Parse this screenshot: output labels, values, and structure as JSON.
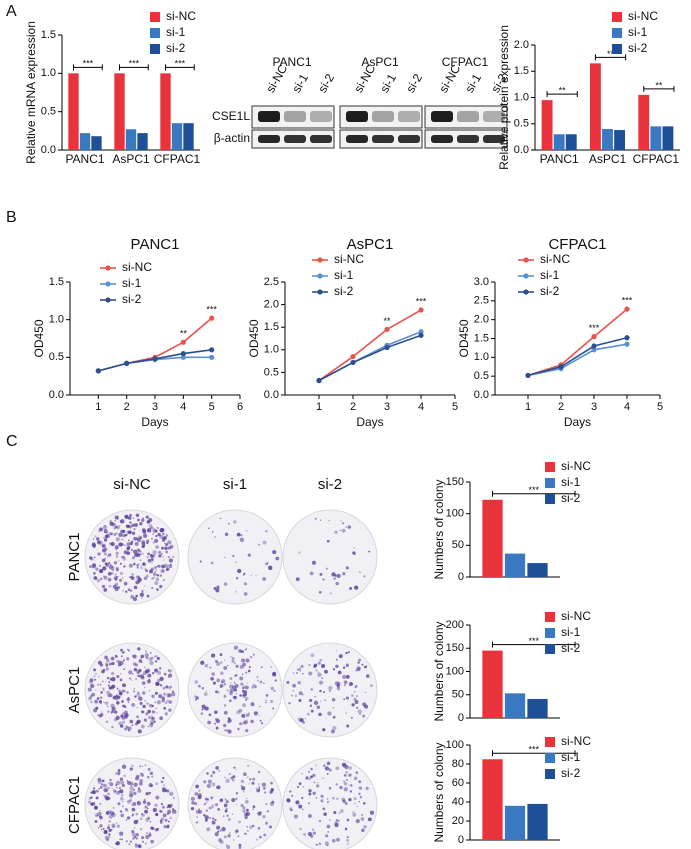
{
  "panel_labels": [
    "A",
    "B",
    "C"
  ],
  "blot": {
    "cell_lines": [
      "PANC1",
      "AsPC1",
      "CFPAC1"
    ],
    "lanes": [
      "si-NC",
      "si-1",
      "si-2"
    ],
    "proteins": [
      "CSE1L",
      "β-actin"
    ]
  },
  "colony": {
    "columns": [
      "si-NC",
      "si-1",
      "si-2"
    ],
    "rows": [
      "PANC1",
      "AsPC1",
      "CFPAC1"
    ]
  },
  "chart_data": [
    {
      "type": "bar",
      "ylabel": "Relative mRNA expression",
      "categories": [
        "PANC1",
        "AsPC1",
        "CFPAC1"
      ],
      "series": [
        {
          "name": "si-NC",
          "color": "#e8323c",
          "values": [
            1.0,
            1.0,
            1.0
          ]
        },
        {
          "name": "si-1",
          "color": "#3a78c2",
          "values": [
            0.22,
            0.27,
            0.35
          ]
        },
        {
          "name": "si-2",
          "color": "#1f4f96",
          "values": [
            0.18,
            0.22,
            0.35
          ]
        }
      ],
      "annotations": [
        "***",
        "***",
        "***"
      ],
      "ylim": [
        0,
        1.5
      ],
      "yticks": [
        {
          "value": 0,
          "label": "0.0"
        },
        {
          "value": 0.5,
          "label": "0.5"
        },
        {
          "value": 1,
          "label": "1.0"
        },
        {
          "value": 1.5,
          "label": "1.5"
        }
      ]
    },
    {
      "type": "bar",
      "ylabel": "Relative protein expression",
      "categories": [
        "PANC1",
        "AsPC1",
        "CFPAC1"
      ],
      "series": [
        {
          "name": "si-NC",
          "color": "#e8323c",
          "values": [
            0.95,
            1.65,
            1.05
          ]
        },
        {
          "name": "si-1",
          "color": "#3a78c2",
          "values": [
            0.3,
            0.4,
            0.45
          ]
        },
        {
          "name": "si-2",
          "color": "#1f4f96",
          "values": [
            0.3,
            0.38,
            0.45
          ]
        }
      ],
      "annotations": [
        "**",
        "**",
        "**"
      ],
      "ylim": [
        0,
        2
      ],
      "yticks": [
        {
          "value": 0,
          "label": "0.0"
        },
        {
          "value": 0.5,
          "label": "0.5"
        },
        {
          "value": 1,
          "label": "1.0"
        },
        {
          "value": 1.5,
          "label": "1.5"
        },
        {
          "value": 2,
          "label": "2.0"
        }
      ]
    },
    {
      "type": "line",
      "title": "PANC1",
      "xlabel": "Days",
      "ylabel": "OD450",
      "x": [
        1,
        2,
        3,
        4,
        5
      ],
      "series": [
        {
          "name": "si-NC",
          "color": "#e8534a",
          "values": [
            0.32,
            0.42,
            0.5,
            0.7,
            1.02
          ]
        },
        {
          "name": "si-1",
          "color": "#5b8fd6",
          "values": [
            0.32,
            0.42,
            0.47,
            0.5,
            0.5
          ]
        },
        {
          "name": "si-2",
          "color": "#2c4f8f",
          "values": [
            0.32,
            0.42,
            0.48,
            0.55,
            0.6
          ]
        }
      ],
      "annotations": [
        "**",
        "***"
      ],
      "annotation_x": [
        4,
        5
      ],
      "xlim": [
        0,
        6
      ],
      "xticks": [
        1,
        2,
        3,
        4,
        5,
        6
      ],
      "ylim": [
        0,
        1.5
      ],
      "yticks": [
        {
          "value": 0,
          "label": "0.0"
        },
        {
          "value": 0.5,
          "label": "0.5"
        },
        {
          "value": 1,
          "label": "1.0"
        },
        {
          "value": 1.5,
          "label": "1.5"
        }
      ]
    },
    {
      "type": "line",
      "title": "AsPC1",
      "xlabel": "Days",
      "ylabel": "OD450",
      "x": [
        1,
        2,
        3,
        4
      ],
      "series": [
        {
          "name": "si-NC",
          "color": "#e8534a",
          "values": [
            0.32,
            0.85,
            1.45,
            1.88
          ]
        },
        {
          "name": "si-1",
          "color": "#5b8fd6",
          "values": [
            0.32,
            0.72,
            1.1,
            1.4
          ]
        },
        {
          "name": "si-2",
          "color": "#2c4f8f",
          "values": [
            0.32,
            0.72,
            1.05,
            1.32
          ]
        }
      ],
      "annotations": [
        "**",
        "***"
      ],
      "annotation_x": [
        3,
        4
      ],
      "xlim": [
        0,
        5
      ],
      "xticks": [
        1,
        2,
        3,
        4,
        5
      ],
      "ylim": [
        0,
        2.5
      ],
      "yticks": [
        {
          "value": 0,
          "label": "0.0"
        },
        {
          "value": 0.5,
          "label": "0.5"
        },
        {
          "value": 1,
          "label": "1.0"
        },
        {
          "value": 1.5,
          "label": "1.5"
        },
        {
          "value": 2,
          "label": "2.0"
        },
        {
          "value": 2.5,
          "label": "2.5"
        }
      ]
    },
    {
      "type": "line",
      "title": "CFPAC1",
      "xlabel": "Days",
      "ylabel": "OD450",
      "x": [
        1,
        2,
        3,
        4
      ],
      "series": [
        {
          "name": "si-NC",
          "color": "#e8534a",
          "values": [
            0.52,
            0.8,
            1.55,
            2.28
          ]
        },
        {
          "name": "si-1",
          "color": "#5b8fd6",
          "values": [
            0.52,
            0.7,
            1.2,
            1.35
          ]
        },
        {
          "name": "si-2",
          "color": "#2c4f8f",
          "values": [
            0.52,
            0.75,
            1.3,
            1.52
          ]
        }
      ],
      "annotations": [
        "***",
        "***"
      ],
      "annotation_x": [
        3,
        4
      ],
      "xlim": [
        0,
        5
      ],
      "xticks": [
        1,
        2,
        3,
        4,
        5
      ],
      "ylim": [
        0,
        3
      ],
      "yticks": [
        {
          "value": 0,
          "label": "0.0"
        },
        {
          "value": 0.5,
          "label": "0.5"
        },
        {
          "value": 1,
          "label": "1.0"
        },
        {
          "value": 1.5,
          "label": "1.5"
        },
        {
          "value": 2,
          "label": "2.0"
        },
        {
          "value": 2.5,
          "label": "2.5"
        },
        {
          "value": 3,
          "label": "3.0"
        }
      ]
    },
    {
      "type": "bar",
      "ylabel": "Numbers of colony",
      "categories": [
        null
      ],
      "series": [
        {
          "name": "si-NC",
          "color": "#e8323c",
          "values": [
            122
          ]
        },
        {
          "name": "si-1",
          "color": "#3a78c2",
          "values": [
            37
          ]
        },
        {
          "name": "si-2",
          "color": "#1f4f96",
          "values": [
            22
          ]
        }
      ],
      "annotations": [
        "***"
      ],
      "ylim": [
        0,
        150
      ],
      "yticks": [
        0,
        50,
        100,
        150
      ]
    },
    {
      "type": "bar",
      "ylabel": "Numbers of colony",
      "categories": [
        null
      ],
      "series": [
        {
          "name": "si-NC",
          "color": "#e8323c",
          "values": [
            145
          ]
        },
        {
          "name": "si-1",
          "color": "#3a78c2",
          "values": [
            53
          ]
        },
        {
          "name": "si-2",
          "color": "#1f4f96",
          "values": [
            41
          ]
        }
      ],
      "annotations": [
        "***"
      ],
      "ylim": [
        0,
        200
      ],
      "yticks": [
        0,
        50,
        100,
        150,
        200
      ]
    },
    {
      "type": "bar",
      "ylabel": "Numbers of colony",
      "categories": [
        null
      ],
      "series": [
        {
          "name": "si-NC",
          "color": "#e8323c",
          "values": [
            85
          ]
        },
        {
          "name": "si-1",
          "color": "#3a78c2",
          "values": [
            36
          ]
        },
        {
          "name": "si-2",
          "color": "#1f4f96",
          "values": [
            38
          ]
        }
      ],
      "annotations": [
        "***"
      ],
      "ylim": [
        0,
        100
      ],
      "yticks": [
        0,
        20,
        40,
        60,
        80,
        100
      ]
    }
  ]
}
